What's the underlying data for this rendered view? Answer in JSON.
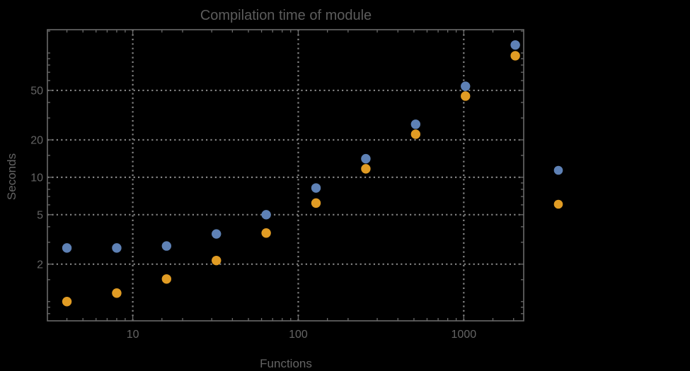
{
  "colors": {
    "background": "#000000",
    "frame": "#6a6a6a",
    "grid": "#848484",
    "tick_text": "#646464",
    "title_text": "#5c5c5c",
    "series1": "#5e81b5",
    "series2": "#e19c24"
  },
  "legend": {
    "markers": [
      {
        "name": "series-1-marker",
        "color": "#5e81b5"
      },
      {
        "name": "series-2-marker",
        "color": "#e19c24"
      }
    ]
  },
  "chart_data": {
    "type": "scatter",
    "title": "Compilation time of module",
    "xlabel": "Functions",
    "ylabel": "Seconds",
    "xscale": "log",
    "yscale": "log",
    "xlim": [
      3.05,
      2302
    ],
    "ylim": [
      0.7,
      154
    ],
    "x_major_ticks": [
      10,
      100,
      1000
    ],
    "x_tick_labels": [
      "10",
      "100",
      "1000"
    ],
    "y_major_ticks": [
      2,
      5,
      10,
      20,
      50
    ],
    "y_tick_labels": [
      "2",
      "5",
      "10",
      "20",
      "50"
    ],
    "grid": "dotted-at-major-ticks",
    "legend_position": "right-of-frame-unlabeled",
    "x": [
      4,
      8,
      16,
      32,
      64,
      128,
      256,
      512,
      1024,
      2048
    ],
    "series": [
      {
        "name": "series-1",
        "color": "#5e81b5",
        "values": [
          2.7,
          2.7,
          2.8,
          3.5,
          5.0,
          8.2,
          14.1,
          26.7,
          54,
          116
        ]
      },
      {
        "name": "series-2",
        "color": "#e19c24",
        "values": [
          1.0,
          1.17,
          1.52,
          2.14,
          3.56,
          6.2,
          11.7,
          22.2,
          45,
          95
        ]
      }
    ]
  }
}
